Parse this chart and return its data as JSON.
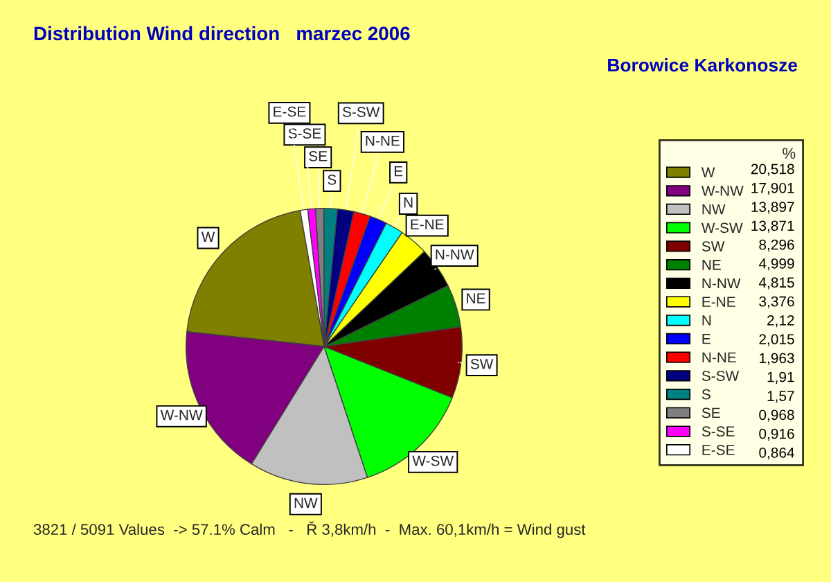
{
  "chart_data": {
    "type": "pie",
    "title": "Distribution Wind direction   marzec 2006",
    "subtitle": "Borowice Karkonosze",
    "legend_title": "%",
    "legend": "right",
    "categories": [
      "W",
      "W-NW",
      "NW",
      "W-SW",
      "SW",
      "NE",
      "N-NW",
      "E-NE",
      "N",
      "E",
      "N-NE",
      "S-SW",
      "S",
      "SE",
      "S-SE",
      "E-SE"
    ],
    "values": [
      20.518,
      17.901,
      13.897,
      13.871,
      8.296,
      4.999,
      4.815,
      3.376,
      2.12,
      2.015,
      1.963,
      1.91,
      1.57,
      0.968,
      0.916,
      0.864
    ],
    "value_labels": [
      "20,518",
      "17,901",
      "13,897",
      "13,871",
      "8,296",
      "4,999",
      "4,815",
      "3,376",
      "2,12",
      "2,015",
      "1,963",
      "1,91",
      "1,57",
      "0,968",
      "0,916",
      "0,864"
    ],
    "colors": [
      "#808000",
      "#800080",
      "#c0c0c0",
      "#00ff00",
      "#800000",
      "#008000",
      "#000000",
      "#ffff00",
      "#00ffff",
      "#0000ff",
      "#ff0000",
      "#000080",
      "#008080",
      "#808080",
      "#ff00ff",
      "#ffffff"
    ],
    "annotations": [
      "3821 / 5091 Values  -> 57.1% Calm   -   Ř 3,8km/h  -  Max. 60,1km/h = Wind gust"
    ]
  }
}
